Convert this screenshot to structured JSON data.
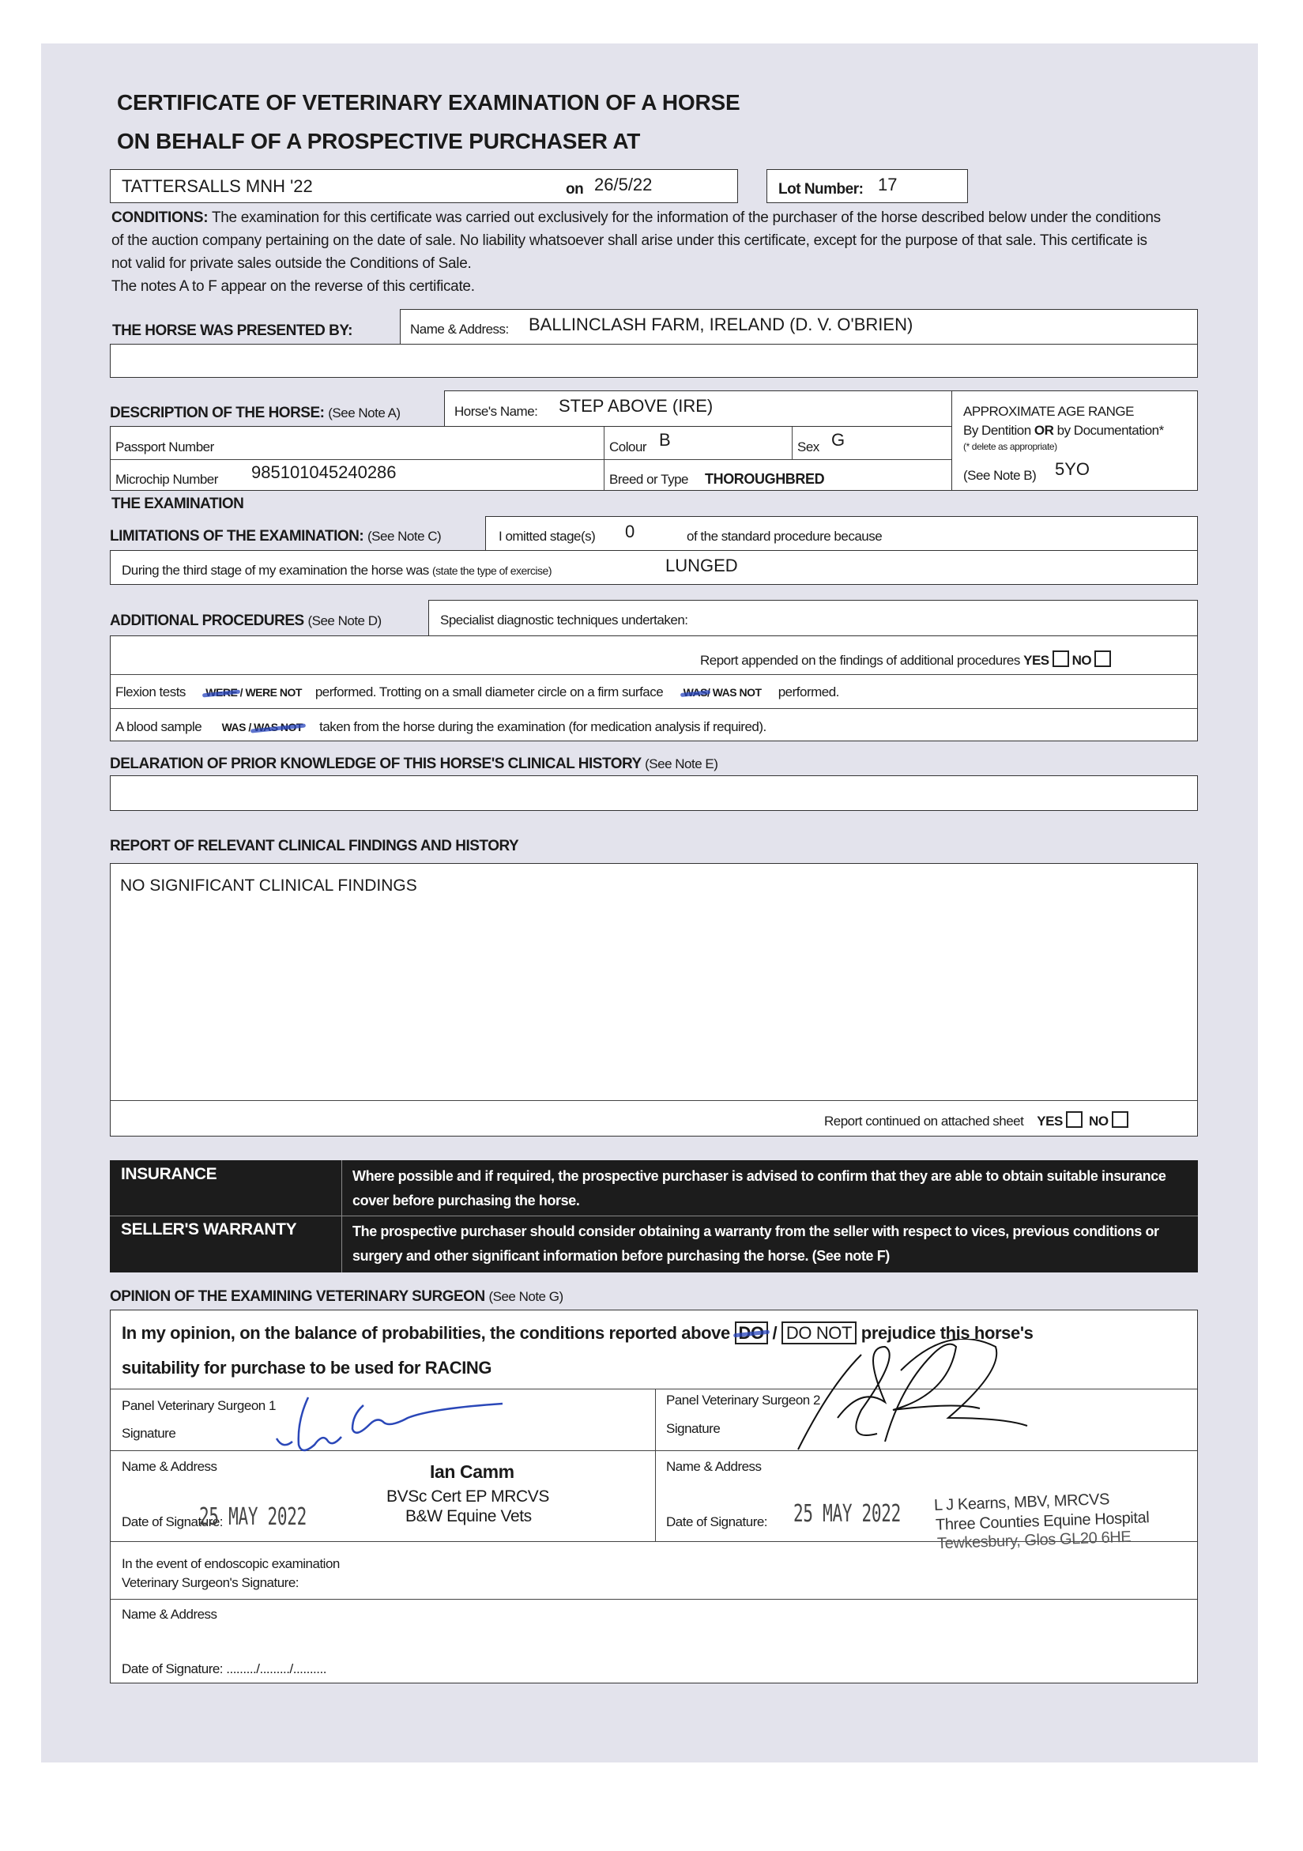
{
  "title": {
    "line1": "CERTIFICATE OF VETERINARY EXAMINATION OF A HORSE",
    "line2": "ON BEHALF OF A PROSPECTIVE PURCHASER AT"
  },
  "sale": {
    "name": "TATTERSALLS MNH '22",
    "on_label": "on",
    "date": "26/5/22",
    "lot_label": "Lot Number:",
    "lot": "17"
  },
  "conditions": {
    "label": "CONDITIONS:",
    "text": "The examination for this certificate was carried out exclusively for the information of the purchaser of the horse described below under the conditions of the auction company pertaining on the date of sale. No liability whatsoever shall arise under this certificate, except for the purpose of that sale. This certificate is not valid for private sales outside the Conditions of Sale.",
    "notes": "The notes A to F appear on the reverse of this certificate."
  },
  "presented": {
    "label": "THE HORSE WAS PRESENTED BY:",
    "name_label": "Name & Address:",
    "name": "BALLINCLASH FARM, IRELAND (D. V. O'BRIEN)"
  },
  "description": {
    "label": "DESCRIPTION OF THE HORSE:",
    "note": "(See Note A)",
    "horse_name_label": "Horse's Name:",
    "horse_name": "STEP ABOVE (IRE)",
    "passport_label": "Passport Number",
    "passport": "",
    "colour_label": "Colour",
    "colour": "B",
    "sex_label": "Sex",
    "sex": "G",
    "microchip_label": "Microchip Number",
    "microchip": "985101045240286",
    "breed_label": "Breed or Type",
    "breed": "THOROUGHBRED",
    "age_title": "APPROXIMATE AGE RANGE",
    "age_by_pre": "By Dentition ",
    "age_or": "OR",
    "age_by_post": " by Documentation*",
    "age_delete": "(* delete as appropriate)",
    "age_note": "(See Note B)",
    "age": "5YO"
  },
  "examination": {
    "label": "THE EXAMINATION",
    "limitations_label": "LIMITATIONS OF THE EXAMINATION:",
    "limitations_note": "(See Note C)",
    "omitted_label": "I omitted stage(s)",
    "omitted": "0",
    "omitted_suffix": "of the standard procedure because",
    "third_stage_label": "During the third stage of my examination the horse was",
    "third_stage_note": "(state the type of exercise)",
    "third_stage": "LUNGED"
  },
  "additional": {
    "label": "ADDITIONAL PROCEDURES",
    "note": "(See Note D)",
    "specialist_label": "Specialist diagnostic techniques undertaken:",
    "report_appended": "Report appended on the findings of additional procedures",
    "yes": "YES",
    "no": "NO",
    "flexion_label": "Flexion tests",
    "were": "WERE",
    "slash": "/",
    "were_not": "WERE NOT",
    "flexion_mid": "performed. Trotting on a small diameter circle on a firm surface",
    "was": "WAS",
    "was_not": "WAS NOT",
    "performed": "performed.",
    "blood_label": "A blood sample",
    "blood_suffix": "taken from the horse during the examination (for medication analysis if required)."
  },
  "declaration": {
    "label": "DELARATION OF PRIOR KNOWLEDGE OF THIS HORSE'S CLINICAL HISTORY",
    "note": "(See Note E)"
  },
  "report": {
    "label": "REPORT OF RELEVANT CLINICAL FINDINGS AND HISTORY",
    "findings": "NO SIGNIFICANT CLINICAL FINDINGS",
    "continued": "Report continued on attached sheet",
    "yes": "YES",
    "no": "NO"
  },
  "insurance": {
    "label": "INSURANCE",
    "text": "Where possible and if required, the prospective purchaser is advised to confirm that they are able to obtain suitable insurance cover before purchasing the horse."
  },
  "warranty": {
    "label": "SELLER'S WARRANTY",
    "text": "The prospective purchaser should consider obtaining a warranty from the seller with respect to vices, previous conditions or surgery and other significant information before purchasing the horse. (See note F)"
  },
  "opinion": {
    "label": "OPINION OF THE EXAMINING VETERINARY SURGEON",
    "note": "(See Note G)",
    "text_pre": "In my opinion, on the balance of probabilities, the conditions reported above",
    "do": "DO",
    "slash": "/",
    "do_not": "DO NOT",
    "text_post": "prejudice this horse's",
    "line2": "suitability for purchase to be used for RACING"
  },
  "surgeon1": {
    "title": "Panel Veterinary Surgeon 1",
    "sig_label": "Signature",
    "name_label": "Name & Address",
    "name": "Ian Camm",
    "quals": "BVSc Cert EP MRCVS",
    "practice": "B&W Equine Vets",
    "date_label": "Date of Signature:",
    "date": "25 MAY 2022"
  },
  "surgeon2": {
    "title": "Panel Veterinary Surgeon 2",
    "sig_label": "Signature",
    "name_label": "Name & Address",
    "name": "L J Kearns, MBV, MRCVS",
    "practice": "Three Counties Equine Hospital",
    "address": "Tewkesbury, Glos GL20 6HE",
    "date_label": "Date of Signature:",
    "date": "25 MAY 2022"
  },
  "endoscopic": {
    "line1": "In the event of endoscopic examination",
    "line2": "Veterinary Surgeon's Signature:",
    "name_label": "Name & Address",
    "date_label": "Date of Signature: ........./........./.........."
  }
}
